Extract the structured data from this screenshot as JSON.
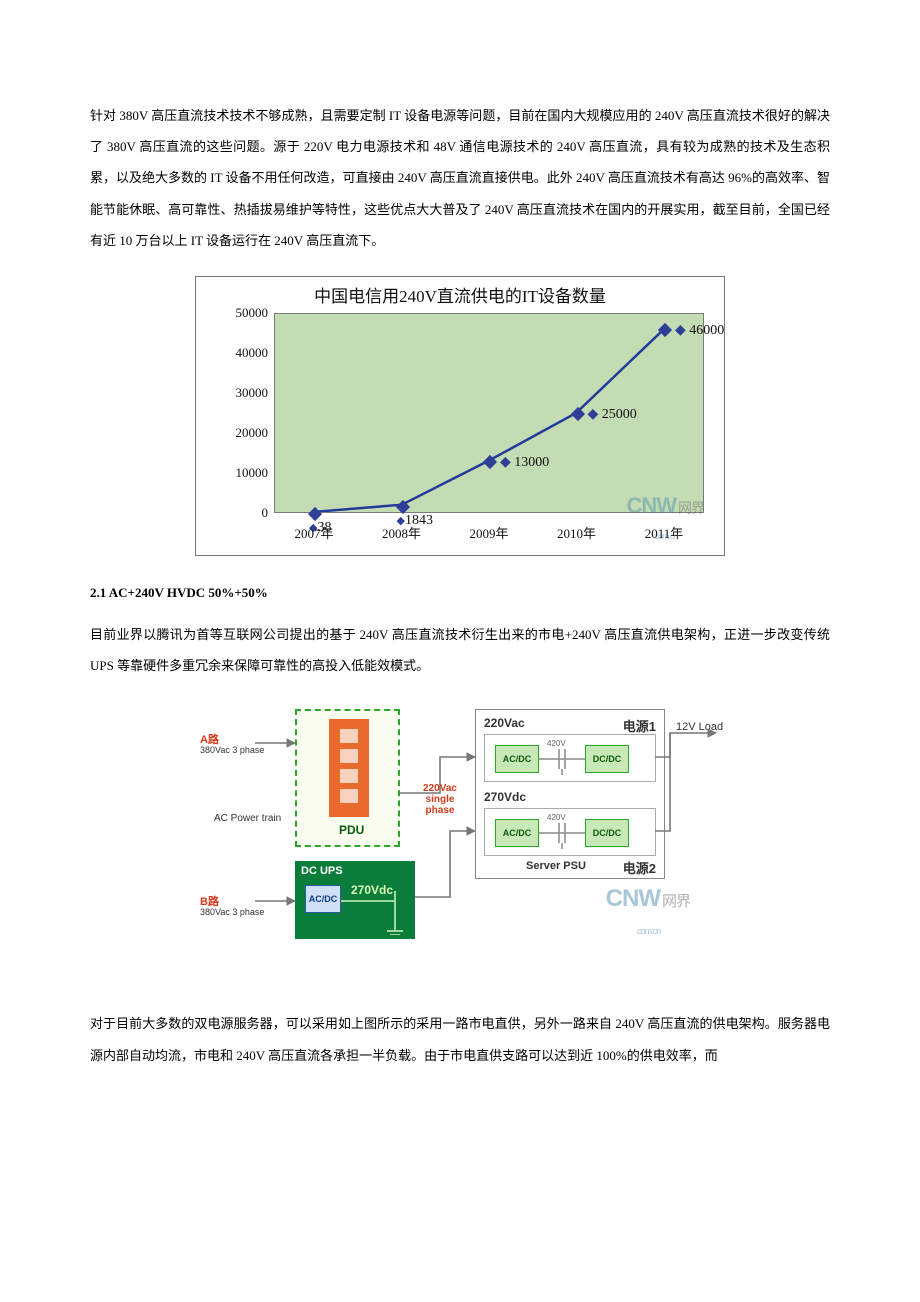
{
  "para1": "针对 380V 高压直流技术技术不够成熟，且需要定制 IT 设备电源等问题，目前在国内大规模应用的 240V 高压直流技术很好的解决了 380V 高压直流的这些问题。源于 220V 电力电源技术和 48V 通信电源技术的 240V 高压直流，具有较为成熟的技术及生态积累，以及绝大多数的 IT 设备不用任何改造，可直接由 240V 高压直流直接供电。此外 240V 高压直流技术有高达 96%的高效率、智能节能休眠、高可靠性、热插拔易维护等特性，这些优点大大普及了 240V 高压直流技术在国内的开展实用，截至目前，全国已经有近 10 万台以上 IT 设备运行在 240V 高压直流下。",
  "chart": {
    "type": "line",
    "title": "中国电信用240V直流供电的IT设备数量",
    "x_categories": [
      "2007年",
      "2008年",
      "2009年",
      "2010年",
      "2011年"
    ],
    "values": [
      38,
      1843,
      13000,
      25000,
      46000
    ],
    "data_labels": [
      "38",
      "1843",
      "13000",
      "25000",
      "46000"
    ],
    "ylim": [
      0,
      50000
    ],
    "ytick_step": 10000,
    "y_ticks": [
      "0",
      "10000",
      "20000",
      "30000",
      "40000",
      "50000"
    ],
    "line_color": "#223a9a",
    "marker_color": "#2f3e96",
    "marker_style": "diamond",
    "background_color": "#c3dcb4",
    "border_color": "#7a7a7a",
    "title_fontsize": 17,
    "label_fontsize": 13,
    "watermark_text": "CNW",
    "watermark_cn": "网界",
    "watermark_sub": ".com.cn"
  },
  "heading1": "2.1 AC+240V HVDC 50%+50%",
  "para2": "目前业界以腾讯为首等互联网公司提出的基于 240V 高压直流技术衍生出来的市电+240V 高压直流供电架构，正进一步改变传统 UPS 等靠硬件多重冗余来保障可靠性的高投入低能效模式。",
  "diagram": {
    "type": "block-diagram",
    "colors": {
      "ac_train_border": "#2aa62a",
      "ac_train_bg": "#fbfdf0",
      "pdu_bg": "#e96a2a",
      "dcups_bg": "#0a7d3a",
      "mod_bg": "#c9e8b8",
      "mod_border": "#2aa62a",
      "acdc_inner_bg": "#cfe0f4",
      "acdc_inner_border": "#2a5aa6",
      "psu_border": "#888888",
      "wire_color": "#666666",
      "label_red": "#d13b1a",
      "label_blue": "#0b3c8a"
    },
    "labels": {
      "a_feed": "A路",
      "a_phase": "380Vac 3 phase",
      "b_feed": "B路",
      "b_phase": "380Vac 3 phase",
      "ac_power_train": "AC Power train",
      "pdu": "PDU",
      "single_phase": "220Vac single phase",
      "dc_ups": "DC UPS",
      "dc_acdc": "AC/DC",
      "dc_270": "270Vdc",
      "psu_220": "220Vac",
      "psu_270": "270Vdc",
      "psu1": "电源1",
      "psu2": "电源2",
      "server_psu": "Server PSU",
      "acdc": "AC/DC",
      "dcdc": "DC/DC",
      "midv": "420V",
      "load": "12V Load"
    },
    "watermark_text": "CNW",
    "watermark_cn": "网界",
    "watermark_sub": ".com.cn"
  },
  "para3": "对于目前大多数的双电源服务器，可以采用如上图所示的采用一路市电直供，另外一路来自 240V 高压直流的供电架构。服务器电源内部自动均流，市电和 240V 高压直流各承担一半负载。由于市电直供支路可以达到近 100%的供电效率，而"
}
